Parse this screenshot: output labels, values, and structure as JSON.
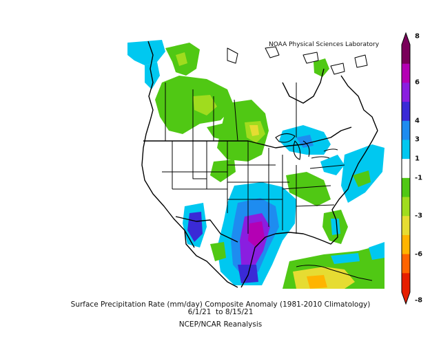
{
  "header": {
    "organization": "NOAA Physical Sciences Laboratory"
  },
  "caption": {
    "title": "Surface Precipitation Rate (mm/day) Composite Anomaly (1981-2010 Climatology)",
    "dates": "6/1/21  to 8/15/21",
    "source": "NCEP/NCAR Reanalysis"
  },
  "colorbar": {
    "min": -8,
    "max": 8,
    "tick_labels": [
      "8",
      "6",
      "4",
      "3",
      "1",
      "-1",
      "-3",
      "-6",
      "-8"
    ],
    "colors_top_to_bottom": [
      "#7a005a",
      "#b400b4",
      "#8a1ee0",
      "#3a2ad6",
      "#1e8cf0",
      "#00c8f0",
      "#ffffff",
      "#50c814",
      "#a0dc1e",
      "#e6dc32",
      "#ffb400",
      "#ff6400",
      "#e61e00"
    ]
  },
  "legend": {
    "positive_anomaly_colors": [
      "#00c8f0",
      "#1e8cf0",
      "#3a2ad6",
      "#8a1ee0",
      "#b400b4"
    ],
    "negative_anomaly_colors": [
      "#50c814",
      "#a0dc1e",
      "#e6dc32",
      "#ffb400"
    ]
  }
}
